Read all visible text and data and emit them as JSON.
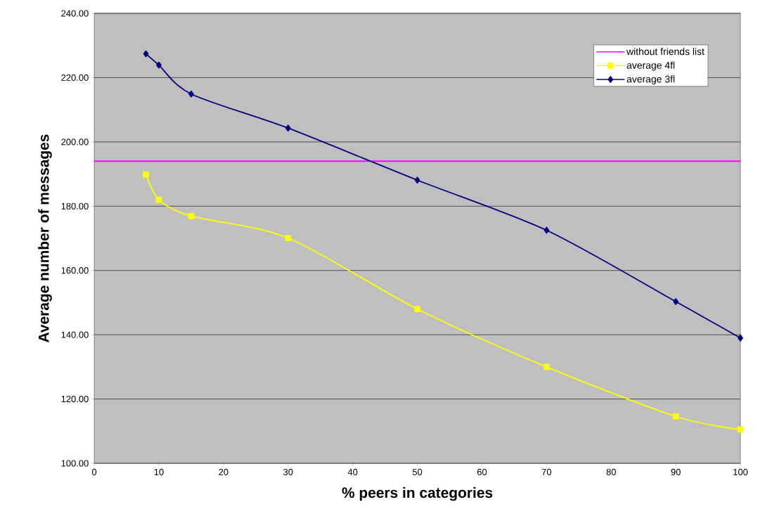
{
  "chart_data": {
    "type": "line",
    "xlabel": "% peers in categories",
    "ylabel": "Average number of messages",
    "x": [
      8,
      10,
      15,
      30,
      50,
      70,
      90,
      100
    ],
    "series": [
      {
        "name": "without friends list",
        "color": "#ff00ff",
        "x": [
          0,
          100
        ],
        "values": [
          194.0,
          194.0
        ],
        "marker": "none"
      },
      {
        "name": "average 4fl",
        "color": "#ffff00",
        "values": [
          189.9,
          182.0,
          176.9,
          170.1,
          148.0,
          130.0,
          114.6,
          110.5
        ],
        "marker": "square"
      },
      {
        "name": "average 3fl",
        "color": "#000080",
        "values": [
          227.4,
          223.9,
          214.9,
          204.3,
          188.1,
          172.5,
          150.3,
          139.0
        ],
        "marker": "diamond"
      }
    ],
    "xlim": [
      0,
      100
    ],
    "xticks": [
      0,
      10,
      20,
      30,
      40,
      50,
      60,
      70,
      80,
      90,
      100
    ],
    "ylim": [
      100,
      240
    ],
    "yticks": [
      {
        "value": 100,
        "label": "100.00"
      },
      {
        "value": 120,
        "label": "120.00"
      },
      {
        "value": 140,
        "label": "140.00"
      },
      {
        "value": 160,
        "label": "160.00"
      },
      {
        "value": 180,
        "label": "180.00"
      },
      {
        "value": 200,
        "label": "200.00"
      },
      {
        "value": 220,
        "label": "220.00"
      },
      {
        "value": 240,
        "label": "240.00"
      }
    ],
    "grid": "y",
    "legend": "top right",
    "line_style": "solid"
  }
}
